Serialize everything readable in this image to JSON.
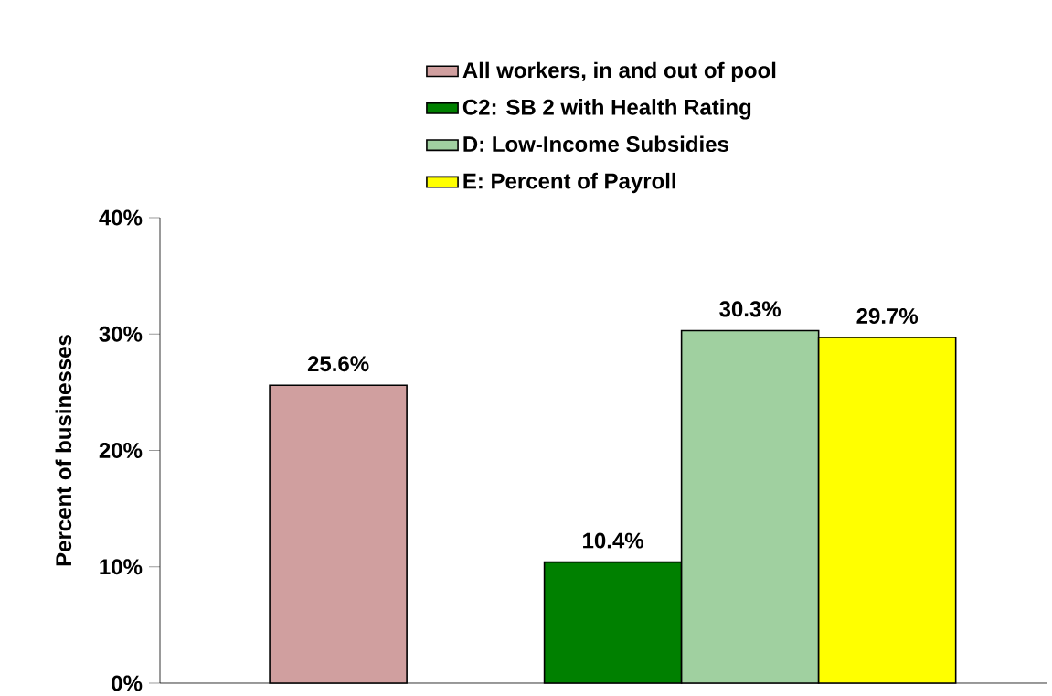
{
  "chart_data": {
    "type": "bar",
    "ylabel": "Percent of businesses",
    "categories": [
      null,
      null
    ],
    "series": [
      {
        "name": "All workers, in and out of pool",
        "color": "#d09f9f",
        "values": [
          25.6,
          null
        ],
        "value_labels": [
          "25.6%",
          null
        ]
      },
      {
        "name": "C2: SB 2 with Health Rating",
        "color": "#008000",
        "values": [
          null,
          10.4
        ],
        "value_labels": [
          null,
          "10.4%"
        ]
      },
      {
        "name": "D: Low-Income Subsidies",
        "color": "#a0d0a0",
        "values": [
          null,
          30.3
        ],
        "value_labels": [
          null,
          "30.3%"
        ]
      },
      {
        "name": "E: Percent of Payroll",
        "color": "#ffff00",
        "values": [
          null,
          29.7
        ],
        "value_labels": [
          null,
          "29.7%"
        ]
      }
    ],
    "ylim": [
      0,
      40
    ],
    "yticks": [
      {
        "value": 0,
        "label": "0%"
      },
      {
        "value": 10,
        "label": "10%"
      },
      {
        "value": 20,
        "label": "20%"
      },
      {
        "value": 30,
        "label": "30%"
      },
      {
        "value": 40,
        "label": "40%"
      }
    ],
    "grid": false,
    "legend": "top"
  }
}
